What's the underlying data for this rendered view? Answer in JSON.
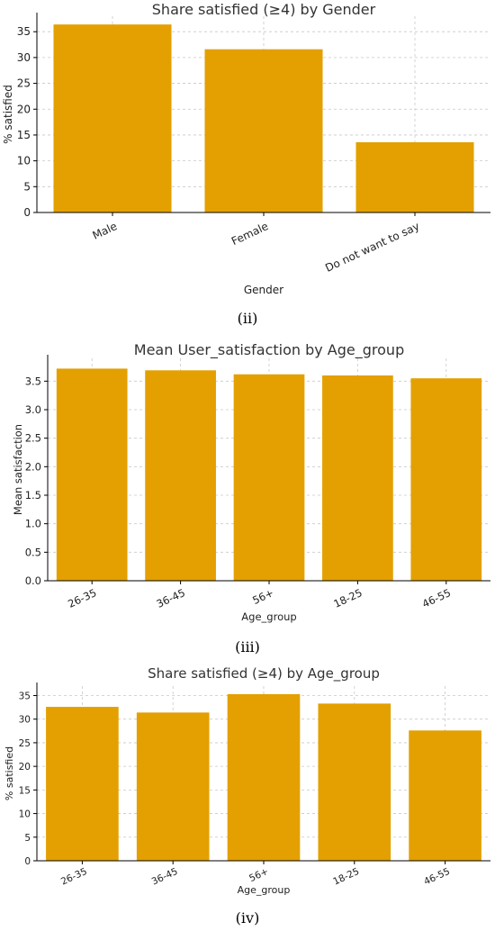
{
  "colors": {
    "bar": "#E3A000",
    "grid": "#c8c8c8",
    "axis": "#000000"
  },
  "captions": [
    "(ii)",
    "(iii)",
    "(iv)"
  ],
  "chart_data": [
    {
      "type": "bar",
      "title": "Share satisfied (≥4) by Gender",
      "xlabel": "Gender",
      "ylabel": "% satisfied",
      "categories": [
        "Male",
        "Female",
        "Do not want to say"
      ],
      "values": [
        36.4,
        31.6,
        13.6
      ],
      "ylim": [
        0,
        38
      ],
      "yticks": [
        "0",
        "5",
        "10",
        "15",
        "20",
        "25",
        "30",
        "35"
      ],
      "grid": true
    },
    {
      "type": "bar",
      "title": "Mean User_satisfaction by Age_group",
      "xlabel": "Age_group",
      "ylabel": "Mean satisfaction",
      "categories": [
        "26-35",
        "36-45",
        "56+",
        "18-25",
        "46-55"
      ],
      "values": [
        3.72,
        3.69,
        3.62,
        3.6,
        3.55
      ],
      "ylim": [
        0,
        3.9
      ],
      "yticks": [
        "0.0",
        "0.5",
        "1.0",
        "1.5",
        "2.0",
        "2.5",
        "3.0",
        "3.5"
      ],
      "grid": true
    },
    {
      "type": "bar",
      "title": "Share satisfied (≥4) by Age_group",
      "xlabel": "Age_group",
      "ylabel": "% satisfied",
      "categories": [
        "26-35",
        "36-45",
        "56+",
        "18-25",
        "46-55"
      ],
      "values": [
        32.6,
        31.4,
        35.3,
        33.3,
        27.6
      ],
      "ylim": [
        0,
        37
      ],
      "yticks": [
        "0",
        "5",
        "10",
        "15",
        "20",
        "25",
        "30",
        "35"
      ],
      "grid": true
    }
  ]
}
